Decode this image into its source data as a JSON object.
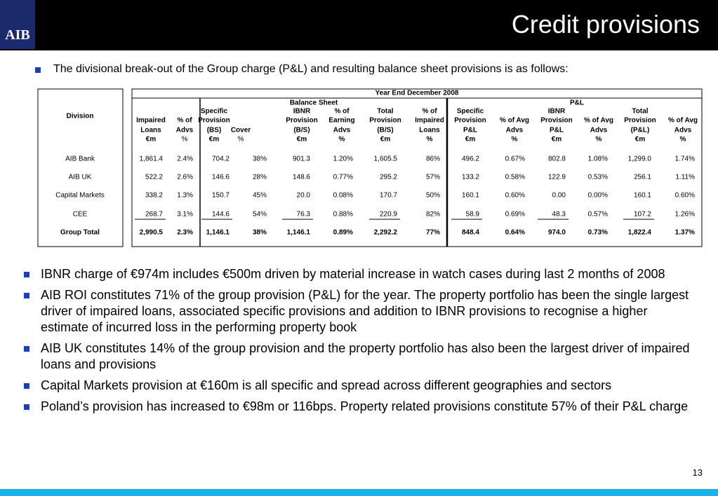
{
  "header": {
    "logo": "AIB",
    "title": "Credit provisions"
  },
  "intro": "The divisional break-out of the Group charge (P&L) and resulting balance sheet provisions is as follows:",
  "table": {
    "division_header": "Division",
    "year_header": "Year End December 2008",
    "groups": [
      "Balance Sheet",
      "P&L"
    ],
    "columns": [
      {
        "lines": [
          "Impaired",
          "Loans",
          "€m"
        ]
      },
      {
        "lines": [
          "% of",
          "Advs",
          "%"
        ]
      },
      {
        "lines": [
          "Specific",
          "Provision",
          "(BS)",
          "€m"
        ]
      },
      {
        "lines": [
          "Cover",
          "%"
        ]
      },
      {
        "lines": [
          "IBNR",
          "Provision",
          "(B/S)",
          "€m"
        ]
      },
      {
        "lines": [
          "% of",
          "Earning",
          "Advs",
          "%"
        ]
      },
      {
        "lines": [
          "Total",
          "Provision",
          "(B/S)",
          "€m"
        ]
      },
      {
        "lines": [
          "% of",
          "Impaired",
          "Loans",
          "%"
        ]
      },
      {
        "lines": [
          "Specific",
          "Provision",
          "P&L",
          "€m"
        ]
      },
      {
        "lines": [
          "% of Avg",
          "Advs",
          "%"
        ]
      },
      {
        "lines": [
          "IBNR",
          "Provision",
          "P&L",
          "€m"
        ]
      },
      {
        "lines": [
          "% of Avg",
          "Advs",
          "%"
        ]
      },
      {
        "lines": [
          "Total",
          "Provision",
          "(P&L)",
          "€m"
        ]
      },
      {
        "lines": [
          "% of Avg",
          "Advs",
          "%"
        ]
      }
    ],
    "rows": [
      {
        "division": "AIB Bank",
        "values": [
          "1,861.4",
          "2.4%",
          "704.2",
          "38%",
          "901.3",
          "1.20%",
          "1,605.5",
          "86%",
          "496.2",
          "0.67%",
          "802.8",
          "1.08%",
          "1,299.0",
          "1.74%"
        ]
      },
      {
        "division": "AIB UK",
        "values": [
          "522.2",
          "2.6%",
          "146.6",
          "28%",
          "148.6",
          "0.77%",
          "295.2",
          "57%",
          "133.2",
          "0.58%",
          "122.9",
          "0.53%",
          "256.1",
          "1.11%"
        ]
      },
      {
        "division": "Capital Markets",
        "values": [
          "338.2",
          "1.3%",
          "150.7",
          "45%",
          "20.0",
          "0.08%",
          "170.7",
          "50%",
          "160.1",
          "0.60%",
          "0.00",
          "0.00%",
          "160.1",
          "0.60%"
        ]
      },
      {
        "division": "CEE",
        "values": [
          "268.7",
          "3.1%",
          "144.6",
          "54%",
          "76.3",
          "0.88%",
          "220.9",
          "82%",
          "58.9",
          "0.69%",
          "48.3",
          "0.57%",
          "107.2",
          "1.26%"
        ]
      },
      {
        "division": "Group Total",
        "values": [
          "2,990.5",
          "2.3%",
          "1,146.1",
          "38%",
          "1,146.1",
          "0.89%",
          "2,292.2",
          "77%",
          "848.4",
          "0.64%",
          "974.0",
          "0.73%",
          "1,822.4",
          "1.37%"
        ]
      }
    ]
  },
  "bullets": [
    "IBNR charge of €974m includes €500m driven by material increase in watch cases during last 2 months of 2008",
    "AIB ROI constitutes 71% of the group provision (P&L) for the year.  The property portfolio has been the single largest driver of impaired loans, associated specific provisions and addition to IBNR provisions to recognise a higher estimate of incurred loss in the performing property book",
    "AIB UK constitutes 14% of the group provision and the property portfolio has also been the largest driver of impaired loans and provisions",
    "Capital Markets provision at €160m is all specific and spread across different geographies and sectors",
    "Poland’s provision has increased to €98m or 116bps. Property related provisions constitute 57% of their P&L charge"
  ],
  "page_number": "13"
}
